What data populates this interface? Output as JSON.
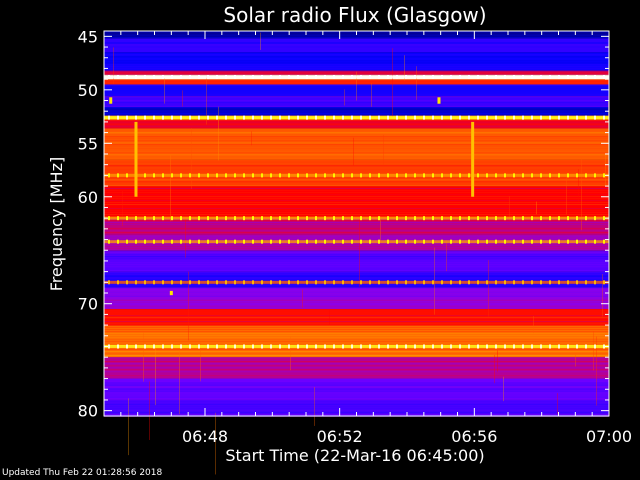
{
  "chart_data": {
    "type": "heatmap",
    "title": "Solar radio Flux (Glasgow)",
    "xlabel": "Start Time (22-Mar-16 06:45:00)",
    "ylabel": "Frequency [MHz]",
    "x_range_minutes": [
      0,
      15
    ],
    "x_ticks": [
      {
        "minute": 3,
        "label": "06:48"
      },
      {
        "minute": 7,
        "label": "06:52"
      },
      {
        "minute": 11,
        "label": "06:56"
      },
      {
        "minute": 15,
        "label": "07:00"
      }
    ],
    "ylim": [
      44.5,
      80.5
    ],
    "y_ticks": [
      {
        "value": 45,
        "label": "45"
      },
      {
        "value": 50,
        "label": "50"
      },
      {
        "value": 55,
        "label": "55"
      },
      {
        "value": 60,
        "label": "60"
      },
      {
        "value": 70,
        "label": "70"
      },
      {
        "value": 80,
        "label": "80"
      }
    ],
    "colormap": [
      "#000080",
      "#0000ff",
      "#8000ff",
      "#ff0000",
      "#ff8000",
      "#ffff00",
      "#ffffff"
    ],
    "bands": [
      {
        "f_start": 44.5,
        "f_end": 45.2,
        "level": 0.05
      },
      {
        "f_start": 45.2,
        "f_end": 46.5,
        "level": 0.22
      },
      {
        "f_start": 46.5,
        "f_end": 48.2,
        "level": 0.18
      },
      {
        "f_start": 48.2,
        "f_end": 48.6,
        "level": 0.45
      },
      {
        "f_start": 48.6,
        "f_end": 49.0,
        "level": 0.98
      },
      {
        "f_start": 49.0,
        "f_end": 49.5,
        "level": 0.55
      },
      {
        "f_start": 49.5,
        "f_end": 50.6,
        "level": 0.2
      },
      {
        "f_start": 50.6,
        "f_end": 51.6,
        "level": 0.25
      },
      {
        "f_start": 51.6,
        "f_end": 52.4,
        "level": 0.1
      },
      {
        "f_start": 52.4,
        "f_end": 52.8,
        "level": 0.75
      },
      {
        "f_start": 52.8,
        "f_end": 53.6,
        "level": 0.48
      },
      {
        "f_start": 53.6,
        "f_end": 56.5,
        "level": 0.62
      },
      {
        "f_start": 56.5,
        "f_end": 59.0,
        "level": 0.58
      },
      {
        "f_start": 59.0,
        "f_end": 62.0,
        "level": 0.5
      },
      {
        "f_start": 62.0,
        "f_end": 63.5,
        "level": 0.42
      },
      {
        "f_start": 63.5,
        "f_end": 65.0,
        "level": 0.38
      },
      {
        "f_start": 65.0,
        "f_end": 67.0,
        "level": 0.28
      },
      {
        "f_start": 67.0,
        "f_end": 68.5,
        "level": 0.22
      },
      {
        "f_start": 68.5,
        "f_end": 70.5,
        "level": 0.35
      },
      {
        "f_start": 70.5,
        "f_end": 72.0,
        "level": 0.52
      },
      {
        "f_start": 72.0,
        "f_end": 75.0,
        "level": 0.64
      },
      {
        "f_start": 75.0,
        "f_end": 77.0,
        "level": 0.4
      },
      {
        "f_start": 77.0,
        "f_end": 79.0,
        "level": 0.3
      },
      {
        "f_start": 79.0,
        "f_end": 80.5,
        "level": 0.26
      }
    ],
    "bright_lines": [
      {
        "freq": 48.8,
        "level": 1.0
      },
      {
        "freq": 52.6,
        "level": 0.85
      },
      {
        "freq": 58.0,
        "level": 0.7
      },
      {
        "freq": 62.0,
        "level": 0.72
      },
      {
        "freq": 64.2,
        "level": 0.7
      },
      {
        "freq": 68.0,
        "level": 0.62
      },
      {
        "freq": 74.0,
        "level": 0.85
      }
    ],
    "bursts": [
      {
        "minute": 0.95,
        "f_start": 53.0,
        "f_end": 60.0,
        "level": 0.75
      },
      {
        "minute": 10.95,
        "f_start": 53.0,
        "f_end": 60.0,
        "level": 0.75
      },
      {
        "minute": 0.2,
        "f_start": 50.7,
        "f_end": 51.3,
        "level": 0.8
      },
      {
        "minute": 9.95,
        "f_start": 50.7,
        "f_end": 51.3,
        "level": 0.8
      },
      {
        "minute": 2.0,
        "f_start": 68.8,
        "f_end": 69.2,
        "level": 0.8
      }
    ]
  },
  "footer": {
    "updated": "Updated Thu Feb 22 01:28:56 2018"
  }
}
